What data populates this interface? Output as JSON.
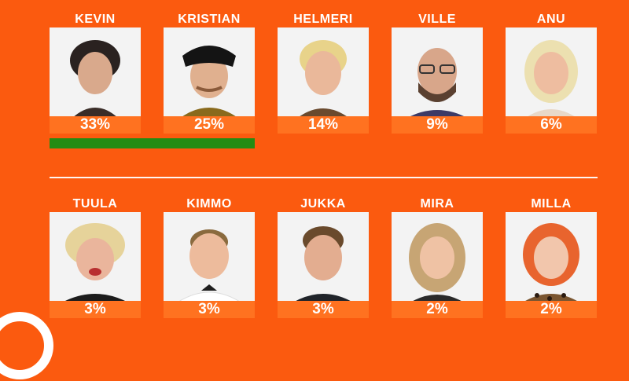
{
  "colors": {
    "background": "#fb5a0f",
    "percent_strip": "#ff7220",
    "advance_bar": "#238c13",
    "divider": "#ffffff"
  },
  "contestants_top": [
    {
      "name": "KEVIN",
      "percent": "33%"
    },
    {
      "name": "KRISTIAN",
      "percent": "25%"
    },
    {
      "name": "HELMERI",
      "percent": "14%"
    },
    {
      "name": "VILLE",
      "percent": "9%"
    },
    {
      "name": "ANU",
      "percent": "6%"
    }
  ],
  "contestants_bottom": [
    {
      "name": "TUULA",
      "percent": "3%"
    },
    {
      "name": "KIMMO",
      "percent": "3%"
    },
    {
      "name": "JUKKA",
      "percent": "3%"
    },
    {
      "name": "MIRA",
      "percent": "2%"
    },
    {
      "name": "MILLA",
      "percent": "2%"
    }
  ],
  "icons": {
    "logo": "circle-logo-icon",
    "photo": "contestant-portrait-icon"
  }
}
